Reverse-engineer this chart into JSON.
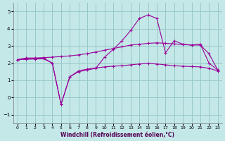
{
  "xlabel": "Windchill (Refroidissement éolien,°C)",
  "background_color": "#c4e8e8",
  "grid_color": "#98c8c8",
  "line_color": "#990099",
  "hours": [
    0,
    1,
    2,
    3,
    4,
    5,
    6,
    7,
    8,
    9,
    10,
    11,
    12,
    13,
    14,
    15,
    16,
    17,
    18,
    19,
    20,
    21,
    22,
    23
  ],
  "series_top": [
    2.2,
    2.3,
    2.3,
    2.3,
    2.0,
    -0.4,
    1.2,
    1.5,
    1.6,
    1.7,
    2.35,
    2.8,
    3.3,
    3.9,
    4.6,
    4.8,
    4.6,
    2.6,
    3.3,
    3.1,
    3.05,
    3.1,
    2.0,
    1.6
  ],
  "series_mid": [
    2.2,
    2.25,
    2.28,
    2.32,
    2.35,
    2.38,
    2.42,
    2.48,
    2.55,
    2.65,
    2.75,
    2.85,
    2.95,
    3.05,
    3.1,
    3.15,
    3.18,
    3.15,
    3.12,
    3.08,
    3.05,
    3.05,
    2.55,
    1.6
  ],
  "series_bot": [
    2.2,
    2.22,
    2.24,
    2.25,
    2.0,
    -0.4,
    1.2,
    1.55,
    1.65,
    1.72,
    1.78,
    1.82,
    1.85,
    1.9,
    1.95,
    1.98,
    1.95,
    1.9,
    1.85,
    1.82,
    1.8,
    1.78,
    1.7,
    1.55
  ],
  "ylim": [
    -1.5,
    5.5
  ],
  "yticks": [
    -1,
    0,
    1,
    2,
    3,
    4,
    5
  ],
  "xticks": [
    0,
    1,
    2,
    3,
    4,
    5,
    6,
    7,
    8,
    9,
    10,
    11,
    12,
    13,
    14,
    15,
    16,
    17,
    18,
    19,
    20,
    21,
    22,
    23
  ],
  "xlim": [
    -0.5,
    23.5
  ]
}
